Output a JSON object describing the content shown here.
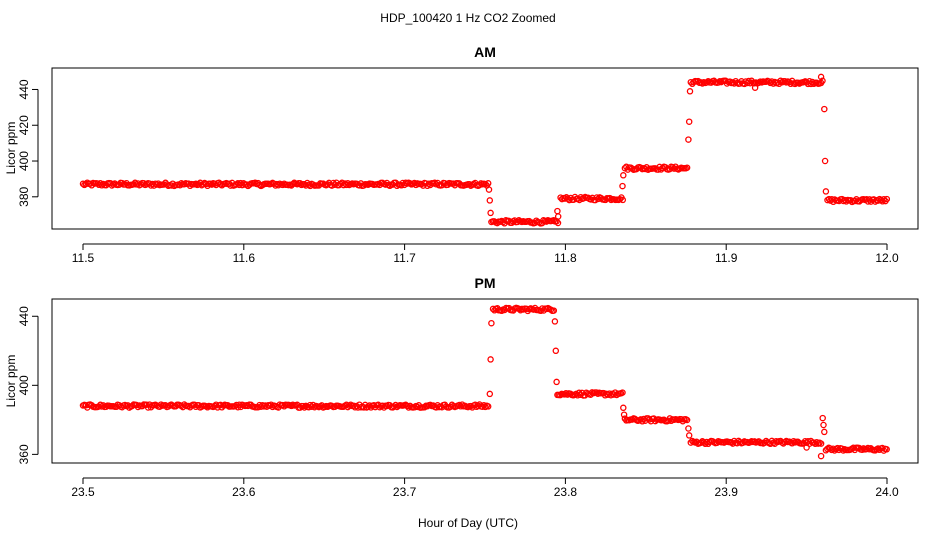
{
  "figure": {
    "title": "HDP_100420  1 Hz CO2 Zoomed",
    "xlabel": "Hour of Day (UTC)",
    "point_color": "#ff0000"
  },
  "chart_data": [
    {
      "type": "scatter",
      "title": "AM",
      "xlabel": "",
      "ylabel": "Licor ppm",
      "xlim": [
        11.5,
        12.0
      ],
      "ylim": [
        362,
        452
      ],
      "xticks": [
        "11.5",
        "11.6",
        "11.7",
        "11.8",
        "11.9",
        "12.0"
      ],
      "yticks": [
        "380",
        "400",
        "420",
        "440"
      ],
      "grid": false,
      "marker": "open-circle",
      "segments": [
        {
          "x": [
            11.5,
            11.752
          ],
          "y": 387
        },
        {
          "x": [
            11.754,
            11.796
          ],
          "y": 366
        },
        {
          "x": [
            11.797,
            11.836
          ],
          "y": 379
        },
        {
          "x": [
            11.837,
            11.876
          ],
          "y": 396
        },
        {
          "x": [
            11.878,
            11.96
          ],
          "y": 444
        },
        {
          "x": [
            11.963,
            12.0
          ],
          "y": 378
        }
      ],
      "transition_points": [
        {
          "x": 11.7525,
          "y": 384
        },
        {
          "x": 11.753,
          "y": 378
        },
        {
          "x": 11.7535,
          "y": 371
        },
        {
          "x": 11.795,
          "y": 372
        },
        {
          "x": 11.7955,
          "y": 369
        },
        {
          "x": 11.8355,
          "y": 386
        },
        {
          "x": 11.836,
          "y": 392
        },
        {
          "x": 11.8765,
          "y": 412
        },
        {
          "x": 11.877,
          "y": 422
        },
        {
          "x": 11.8775,
          "y": 439
        },
        {
          "x": 11.961,
          "y": 429
        },
        {
          "x": 11.9615,
          "y": 400
        },
        {
          "x": 11.962,
          "y": 383
        },
        {
          "x": 11.959,
          "y": 447
        },
        {
          "x": 11.918,
          "y": 441
        }
      ]
    },
    {
      "type": "scatter",
      "title": "PM",
      "xlabel": "",
      "ylabel": "Licor ppm",
      "xlim": [
        23.5,
        24.0
      ],
      "ylim": [
        355,
        450
      ],
      "xticks": [
        "23.5",
        "23.6",
        "23.7",
        "23.8",
        "23.9",
        "24.0"
      ],
      "yticks": [
        "360",
        "400",
        "440"
      ],
      "grid": false,
      "marker": "open-circle",
      "segments": [
        {
          "x": [
            23.5,
            23.752
          ],
          "y": 388
        },
        {
          "x": [
            23.755,
            23.793
          ],
          "y": 444
        },
        {
          "x": [
            23.795,
            23.836
          ],
          "y": 395
        },
        {
          "x": [
            23.837,
            23.876
          ],
          "y": 380
        },
        {
          "x": [
            23.878,
            23.959
          ],
          "y": 367
        },
        {
          "x": [
            23.962,
            24.0
          ],
          "y": 363
        }
      ],
      "transition_points": [
        {
          "x": 23.753,
          "y": 395
        },
        {
          "x": 23.7535,
          "y": 415
        },
        {
          "x": 23.754,
          "y": 436
        },
        {
          "x": 23.7935,
          "y": 437
        },
        {
          "x": 23.794,
          "y": 420
        },
        {
          "x": 23.7945,
          "y": 402
        },
        {
          "x": 23.836,
          "y": 387
        },
        {
          "x": 23.8365,
          "y": 383
        },
        {
          "x": 23.8765,
          "y": 375
        },
        {
          "x": 23.877,
          "y": 371
        },
        {
          "x": 23.96,
          "y": 381
        },
        {
          "x": 23.9605,
          "y": 377
        },
        {
          "x": 23.961,
          "y": 373
        },
        {
          "x": 23.959,
          "y": 359
        },
        {
          "x": 23.95,
          "y": 364
        }
      ]
    }
  ]
}
